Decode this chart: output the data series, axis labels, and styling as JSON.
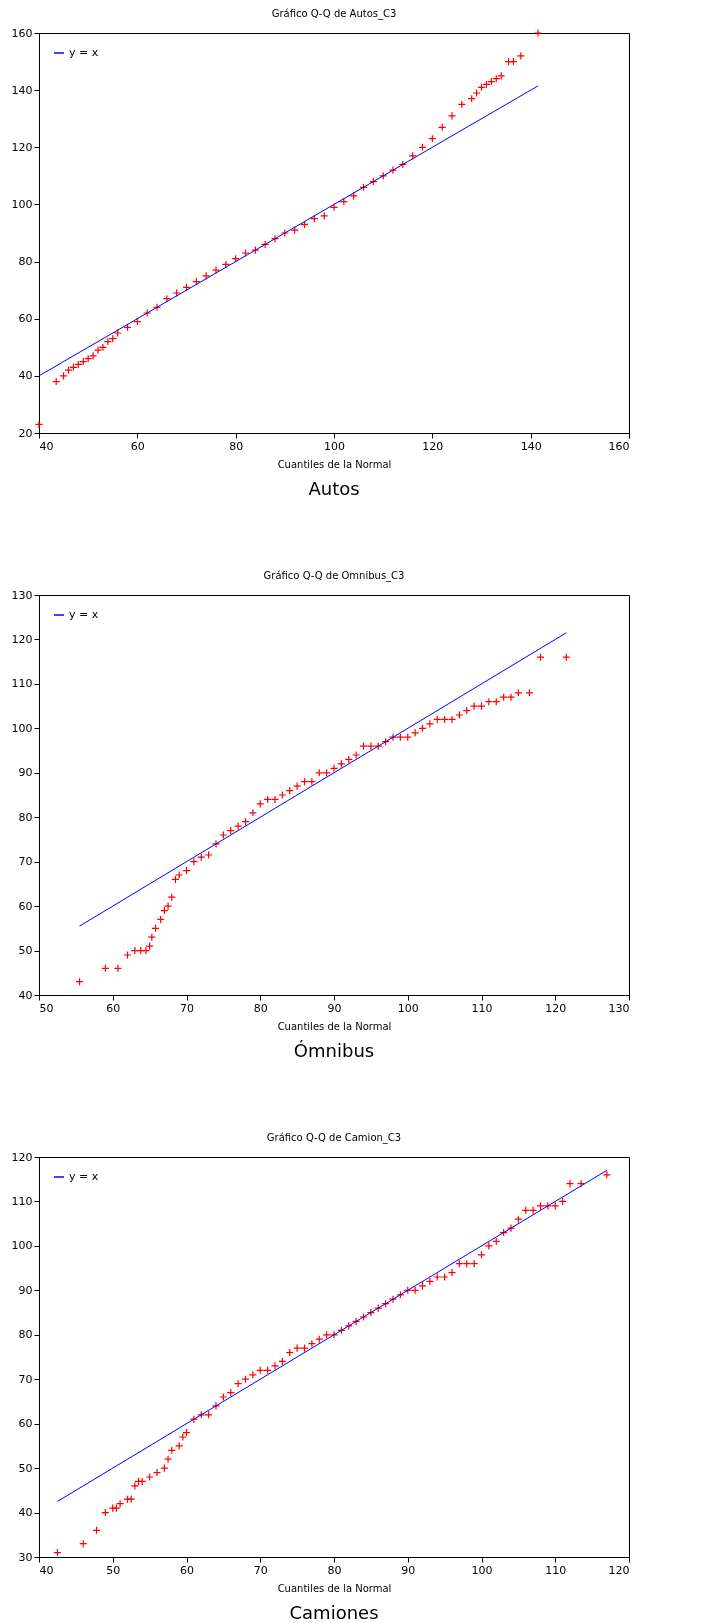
{
  "chart_data": [
    {
      "type": "scatter",
      "title": "Gráfico Q-Q de Autos_C3",
      "xlabel": "Cuantiles de la Normal",
      "annotations": [
        "Autos"
      ],
      "legend": "top left",
      "xlim": [
        40,
        160
      ],
      "xticks": [
        40,
        60,
        80,
        100,
        120,
        140,
        160
      ],
      "ylim": [
        20,
        160
      ],
      "yticks": [
        20,
        40,
        60,
        80,
        100,
        120,
        140,
        160
      ],
      "series": [
        {
          "color": "#ff0000",
          "marker": "cross",
          "x": [
            40,
            43.5,
            45,
            46,
            47,
            48,
            49,
            50,
            51,
            52,
            53,
            54,
            55,
            56,
            58,
            60,
            62,
            64,
            66,
            68,
            70,
            72,
            74,
            76,
            78,
            80,
            82,
            84,
            86,
            88,
            90,
            92,
            94,
            96,
            98,
            100,
            102,
            104,
            106,
            108,
            110,
            112,
            114,
            116,
            118,
            120,
            122,
            124,
            126,
            128,
            129,
            130,
            131,
            132,
            133,
            134,
            135.5,
            136.5,
            138,
            141.5
          ],
          "values": [
            23,
            38,
            40,
            42,
            43,
            44,
            45,
            46,
            47,
            49,
            50,
            52,
            53,
            55,
            57,
            59,
            62,
            64,
            67,
            69,
            71,
            73,
            75,
            77,
            79,
            81,
            83,
            84,
            86,
            88,
            90,
            91,
            93,
            95,
            96,
            99,
            101,
            103,
            106,
            108,
            110,
            112,
            114,
            117,
            120,
            123,
            127,
            131,
            135,
            137,
            139,
            141,
            142,
            143,
            144,
            145,
            150,
            150,
            152,
            160
          ]
        },
        {
          "type": "line",
          "name": "y = x",
          "color": "#0000ff",
          "x": [
            40,
            141.5
          ],
          "values": [
            40,
            141.5
          ]
        }
      ]
    },
    {
      "type": "scatter",
      "title": "Gráfico Q-Q de Omnibus_C3",
      "xlabel": "Cuantiles de la Normal",
      "annotations": [
        "Ómnibus"
      ],
      "legend": "top left",
      "xlim": [
        50,
        130
      ],
      "xticks": [
        50,
        60,
        70,
        80,
        90,
        100,
        110,
        120,
        130
      ],
      "ylim": [
        40,
        130
      ],
      "yticks": [
        40,
        50,
        60,
        70,
        80,
        90,
        100,
        110,
        120,
        130
      ],
      "series": [
        {
          "color": "#ff0000",
          "marker": "cross",
          "x": [
            55.5,
            59,
            60.7,
            62,
            63,
            63.8,
            64.5,
            65,
            65.3,
            65.8,
            66.5,
            67,
            67.5,
            68,
            68.5,
            69,
            70,
            71,
            72,
            73,
            74,
            75,
            76,
            77,
            78,
            79,
            80,
            81,
            82,
            83,
            84,
            85,
            86,
            87,
            88,
            89,
            90,
            91,
            92,
            93,
            94,
            95,
            96,
            97,
            98,
            99,
            100,
            101,
            102,
            103,
            104,
            105,
            106,
            107,
            108,
            109,
            110,
            111,
            112,
            113,
            114,
            115,
            116.5,
            118,
            121.5
          ],
          "values": [
            43,
            46,
            46,
            49,
            50,
            50,
            50,
            51,
            53,
            55,
            57,
            59,
            60,
            62,
            66,
            67,
            68,
            70,
            71,
            71.5,
            74,
            76,
            77,
            78,
            79,
            81,
            83,
            84,
            84,
            85,
            86,
            87,
            88,
            88,
            90,
            90,
            91,
            92,
            93,
            94,
            96,
            96,
            96,
            97,
            98,
            98,
            98,
            99,
            100,
            101,
            102,
            102,
            102,
            103,
            104,
            105,
            105,
            106,
            106,
            107,
            107,
            108,
            108,
            116,
            116
          ]
        },
        {
          "type": "line",
          "name": "y = x",
          "color": "#0000ff",
          "x": [
            55.5,
            121.5
          ],
          "values": [
            55.5,
            121.5
          ]
        }
      ]
    },
    {
      "type": "scatter",
      "title": "Gráfico Q-Q de Camion_C3",
      "xlabel": "Cuantiles de la Normal",
      "annotations": [
        "Camiones"
      ],
      "legend": "top left",
      "xlim": [
        40,
        120
      ],
      "xticks": [
        40,
        50,
        60,
        70,
        80,
        90,
        100,
        110,
        120
      ],
      "ylim": [
        30,
        120
      ],
      "yticks": [
        30,
        40,
        50,
        60,
        70,
        80,
        90,
        100,
        110,
        120
      ],
      "series": [
        {
          "color": "#ff0000",
          "marker": "cross",
          "x": [
            42.5,
            46,
            47.8,
            49,
            50,
            50.5,
            51,
            52,
            52.5,
            53,
            53.5,
            54,
            55,
            56,
            57,
            57.5,
            58,
            59,
            59.5,
            60,
            61,
            62,
            63,
            64,
            65,
            66,
            67,
            68,
            69,
            70,
            71,
            72,
            73,
            74,
            75,
            76,
            77,
            78,
            79,
            80,
            81,
            82,
            83,
            84,
            85,
            86,
            87,
            88,
            89,
            90,
            91,
            92,
            93,
            94,
            95,
            96,
            97,
            98,
            99,
            100,
            101,
            102,
            103,
            104,
            105,
            106,
            107,
            108,
            109,
            110,
            111,
            112,
            113.5,
            117
          ],
          "values": [
            31,
            33,
            36,
            40,
            41,
            41,
            42,
            43,
            43,
            46,
            47,
            47,
            48,
            49,
            50,
            52,
            54,
            55,
            57,
            58,
            61,
            62,
            62,
            64,
            66,
            67,
            69,
            70,
            71,
            72,
            72,
            73,
            74,
            76,
            77,
            77,
            78,
            79,
            80,
            80,
            81,
            82,
            83,
            84,
            85,
            86,
            87,
            88,
            89,
            90,
            90,
            91,
            92,
            93,
            93,
            94,
            96,
            96,
            96,
            98,
            100,
            101,
            103,
            104,
            106,
            108,
            108,
            109,
            109,
            109,
            110,
            114,
            114,
            116
          ]
        },
        {
          "type": "line",
          "name": "y = x",
          "color": "#0000ff",
          "x": [
            42.5,
            117
          ],
          "values": [
            42.5,
            117
          ]
        }
      ]
    }
  ]
}
